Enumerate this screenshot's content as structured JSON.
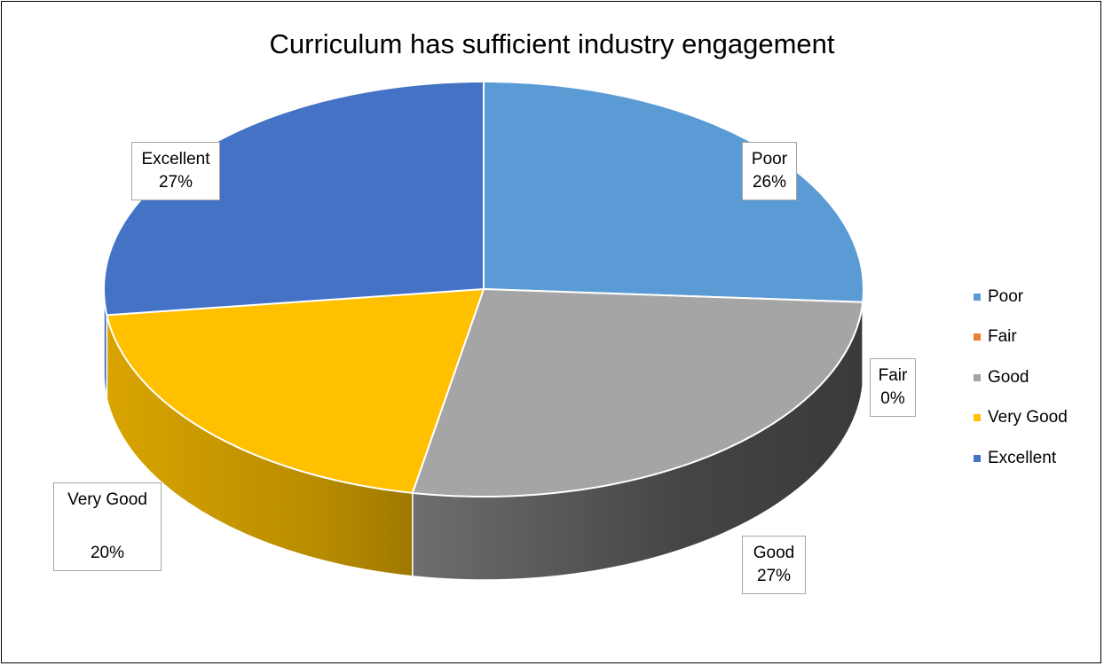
{
  "chart_data": {
    "type": "pie",
    "title": "Curriculum has sufficient industry engagement",
    "categories": [
      "Poor",
      "Fair",
      "Good",
      "Very Good",
      "Excellent"
    ],
    "values": [
      26,
      0,
      27,
      20,
      27
    ],
    "labels": [
      "26%",
      "0%",
      "27%",
      "20%",
      "27%"
    ],
    "colors": [
      "#5b9bd5",
      "#ed7d31",
      "#a5a5a5",
      "#ffc000",
      "#4472c4"
    ],
    "legend_position": "right",
    "three_d": true
  }
}
